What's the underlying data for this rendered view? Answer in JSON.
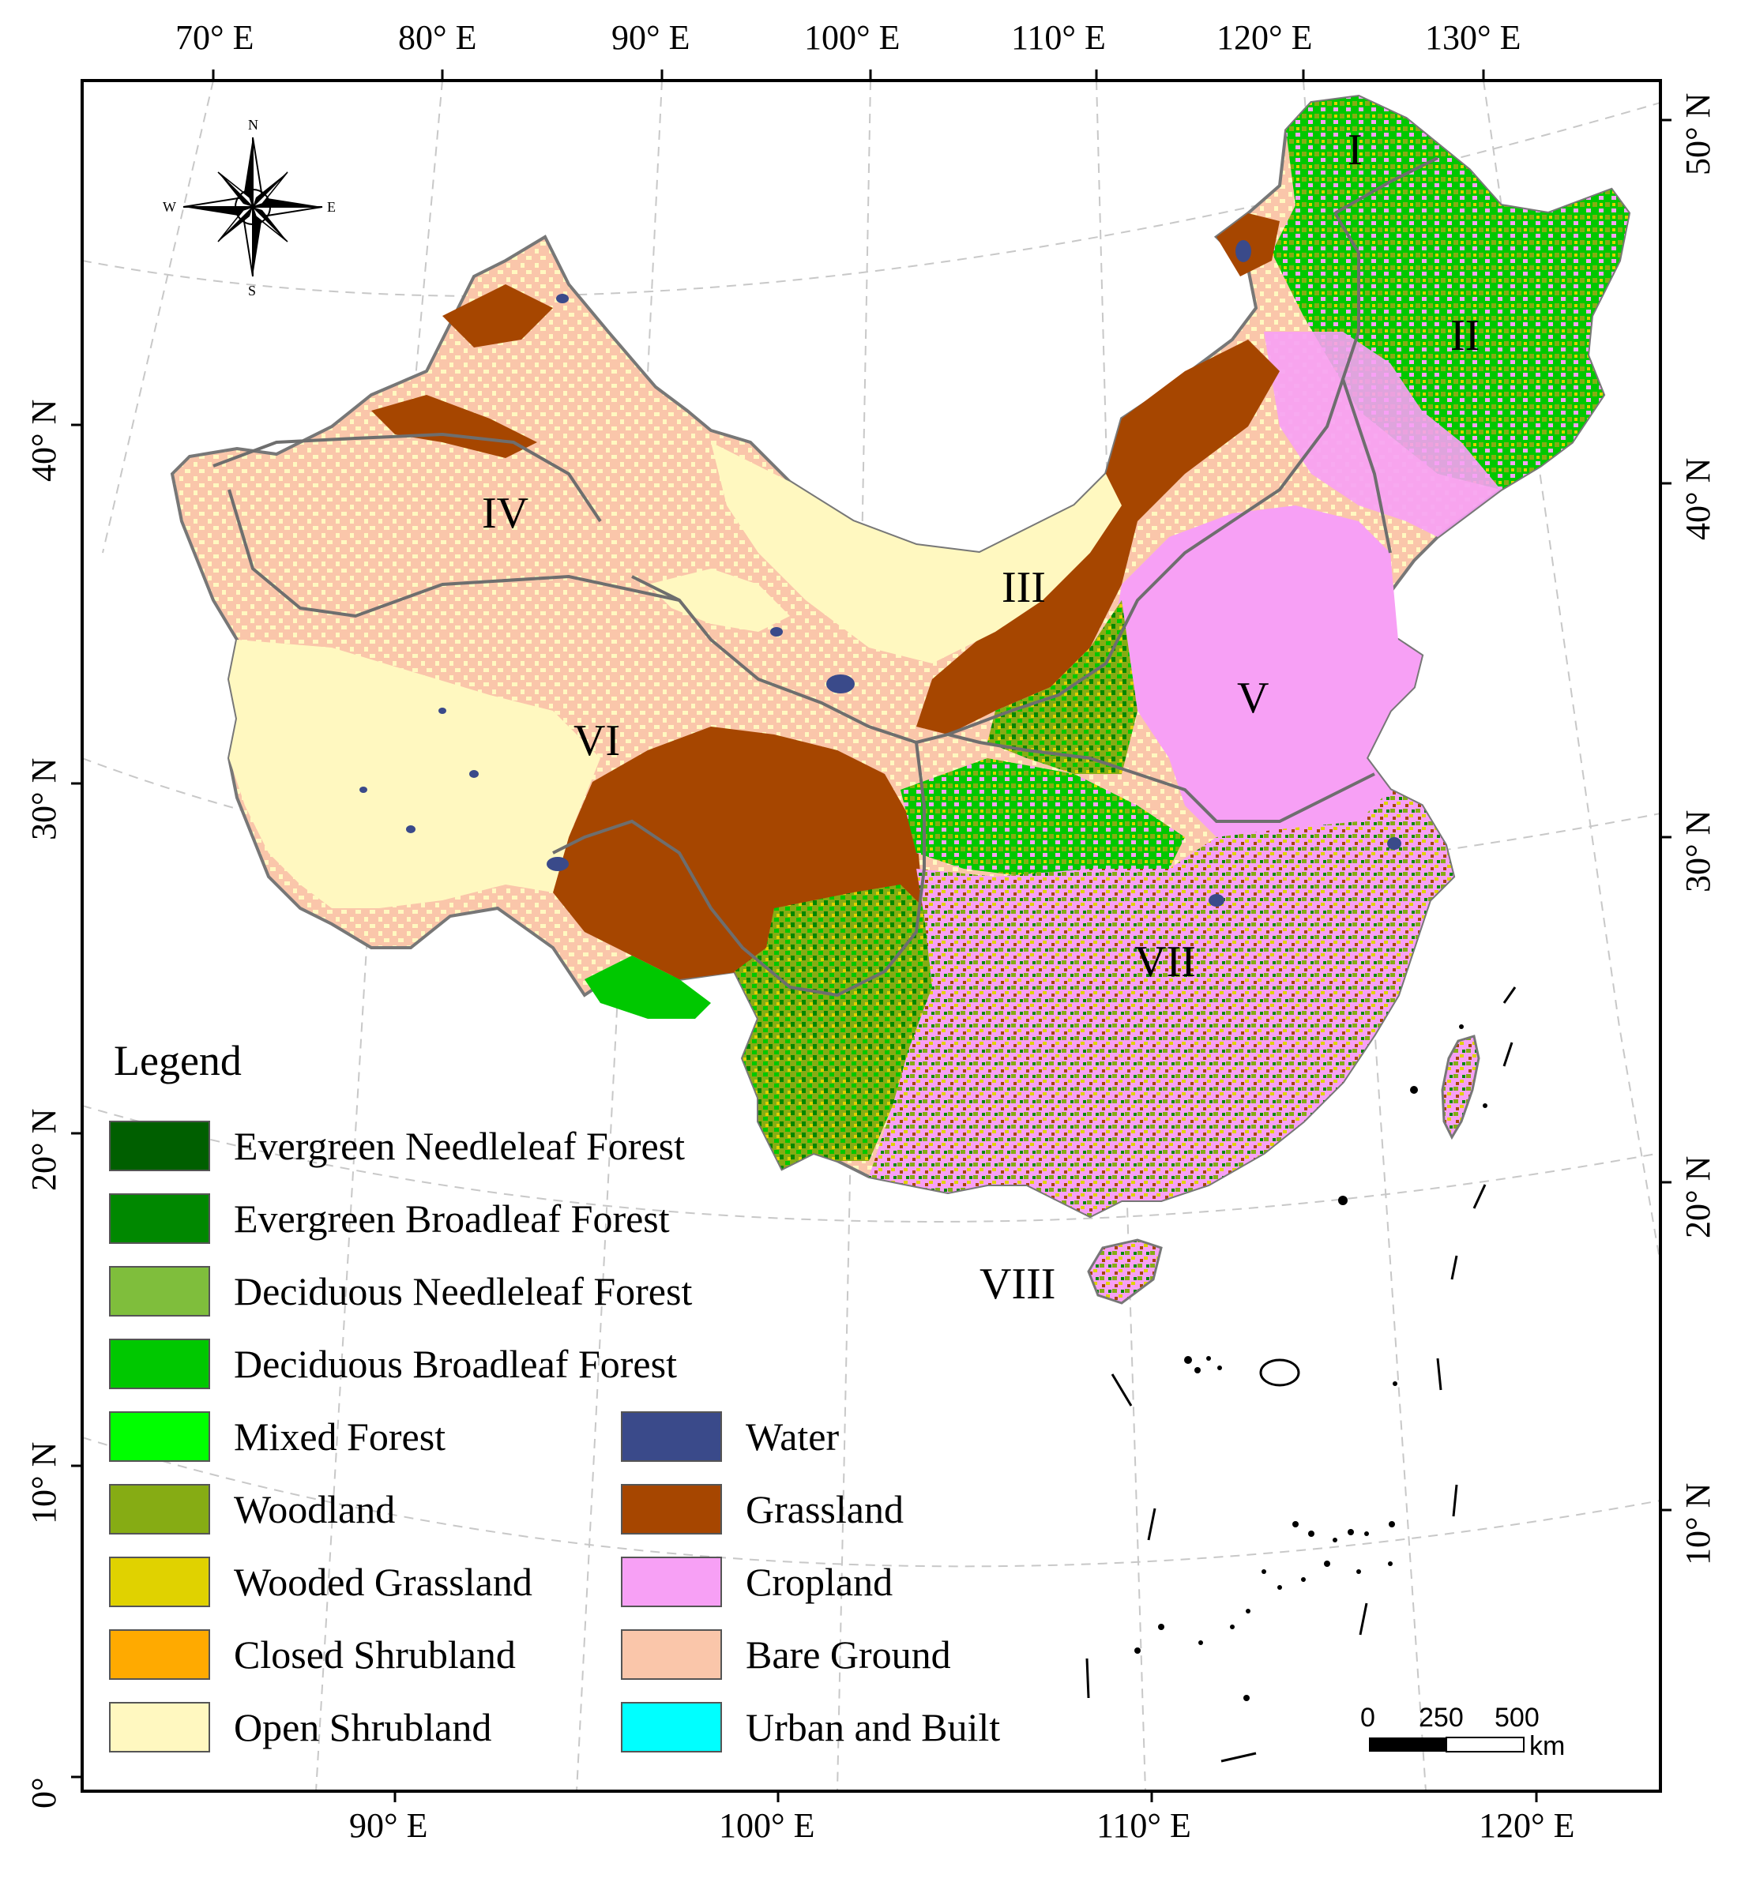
{
  "map": {
    "top_lon_ticks": [
      "70° E",
      "80° E",
      "90° E",
      "100° E",
      "110° E",
      "120° E",
      "130° E"
    ],
    "bottom_lon_ticks": [
      "90° E",
      "100° E",
      "110° E",
      "120° E"
    ],
    "left_lat_ticks": [
      "40° N",
      "30° N",
      "20° N",
      "10° N",
      "0°"
    ],
    "right_lat_ticks": [
      "50° N",
      "40° N",
      "30° N",
      "20° N",
      "10° N"
    ],
    "regions": [
      "I",
      "II",
      "III",
      "IV",
      "V",
      "VI",
      "VII",
      "VIII"
    ],
    "compass": {
      "n": "N",
      "s": "S",
      "e": "E",
      "w": "W"
    },
    "scale_bar": {
      "ticks": [
        "0",
        "250",
        "500"
      ],
      "unit": "km"
    }
  },
  "legend": {
    "title": "Legend",
    "left_column": [
      {
        "label": "Evergreen Needleleaf Forest",
        "color": "#005f00"
      },
      {
        "label": "Evergreen Broadleaf Forest",
        "color": "#008800"
      },
      {
        "label": "Deciduous Needleleaf Forest",
        "color": "#7fbe3c"
      },
      {
        "label": "Deciduous Broadleaf Forest",
        "color": "#00c800"
      },
      {
        "label": "Mixed Forest",
        "color": "#00ff00"
      },
      {
        "label": "Woodland",
        "color": "#86ac14"
      },
      {
        "label": "Wooded Grassland",
        "color": "#e0d200"
      },
      {
        "label": "Closed Shrubland",
        "color": "#ffaa00"
      },
      {
        "label": "Open Shrubland",
        "color": "#fff8c0"
      }
    ],
    "right_column": [
      {
        "label": "Water",
        "color": "#3a4a8a"
      },
      {
        "label": "Grassland",
        "color": "#a64600"
      },
      {
        "label": "Cropland",
        "color": "#f7a0f5"
      },
      {
        "label": "Bare Ground",
        "color": "#fac6aa"
      },
      {
        "label": "Urban and Built",
        "color": "#00ffff"
      }
    ]
  }
}
